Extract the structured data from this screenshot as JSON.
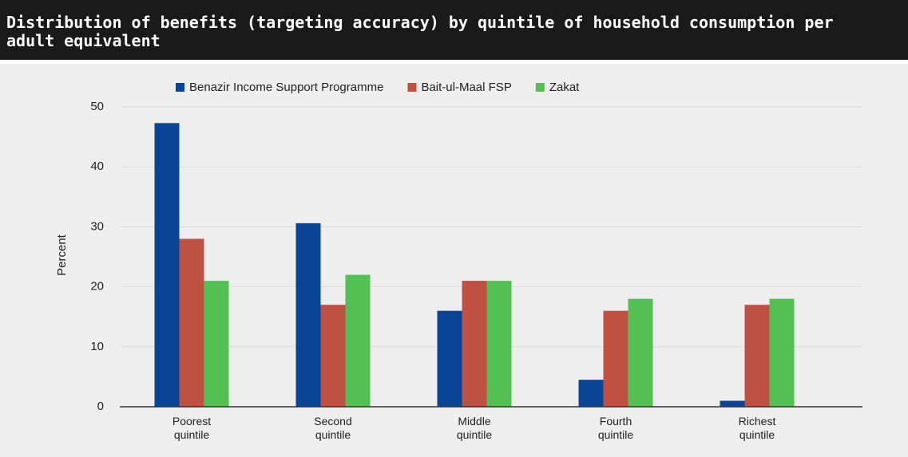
{
  "chart_data": {
    "type": "bar",
    "title": "Distribution of benefits (targeting accuracy) by quintile of household consumption per adult equivalent",
    "ylabel": "Percent",
    "categories": [
      "Poorest quintile",
      "Second quintile",
      "Middle quintile",
      "Fourth quintile",
      "Richest quintile"
    ],
    "series": [
      {
        "name": "Benazir Income Support Programme",
        "color": "#0a4595",
        "values": [
          47.3,
          30.6,
          16,
          4.5,
          1
        ]
      },
      {
        "name": "Bait-ul-Maal FSP",
        "color": "#bf5143",
        "values": [
          28,
          17,
          21,
          16,
          17
        ]
      },
      {
        "name": "Zakat",
        "color": "#54c054",
        "values": [
          21,
          22,
          21,
          18,
          18
        ]
      }
    ],
    "ylim": [
      0,
      50
    ],
    "yticks": [
      0,
      10,
      20,
      30,
      40,
      50
    ],
    "grid": true,
    "legend": "top"
  }
}
